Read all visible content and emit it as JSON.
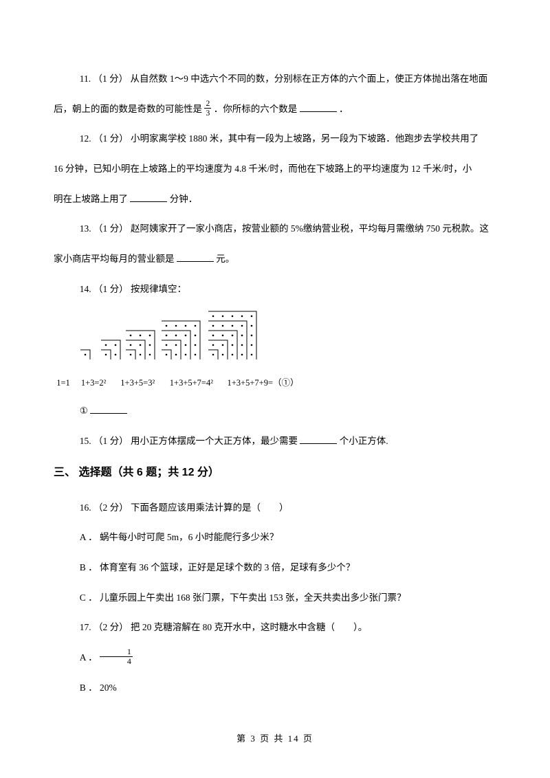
{
  "q11": {
    "num": "11.",
    "pts": "（1 分）",
    "t1": "从自然数 1～9 中选六个不同的数，分别标在正方体的六个面上，使正方体抛出落在地面",
    "t2": "后，朝上的面的数是奇数的可能性是",
    "frac_n": "2",
    "frac_d": "3",
    "t3": "．你所标的六个数是",
    "t4": "．"
  },
  "q12": {
    "num": "12.",
    "pts": "（1 分）",
    "t1": "小明家离学校 1880 米，其中有一段为上坡路，另一段为下坡路．他跑步去学校共用了",
    "t2": "16 分钟，已知小明在上坡路上的平均速度为 4.8 千米/时，而他在下坡路上的平均速度为 12 千米/时，小",
    "t3": "明在上坡路上用了",
    "t4": "分钟．"
  },
  "q13": {
    "num": "13.",
    "pts": "（1 分）",
    "t1": "赵阿姨家开了一家小商店，按营业额的 5%缴纳营业税，平均每月需缴纳 750 元税款。这",
    "t2": "家小商店平均每月的营业额是",
    "t3": "元。"
  },
  "q14": {
    "num": "14.",
    "pts": "（1 分）",
    "t1": "按规律填空：",
    "caps": [
      "1=1",
      "1+3=2²",
      "1+3+5=3²",
      "1+3+5+7=4²",
      "1+3+5+7+9=（①）"
    ],
    "sub": "①"
  },
  "q15": {
    "num": "15.",
    "pts": "（1 分）",
    "t1": "用小正方体摆成一个大正方体，最少需要",
    "t2": "个小正方体."
  },
  "section3": "三、 选择题（共 6 题；共 12 分）",
  "q16": {
    "num": "16.",
    "pts": "（2 分）",
    "stem": "下面各题应该用乘法计算的是（　　）",
    "A": "A ． 蜗牛每小时可爬 5m，6 小时能爬行多少米？",
    "B": "B ． 体育室有 36 个篮球，正好是足球个数的 3 倍，足球有多少个？",
    "C": "C ． 儿童乐园上午卖出 168 张门票，下午卖出 153 张，全天共卖出多少张门票？"
  },
  "q17": {
    "num": "17.",
    "pts": "（2 分）",
    "stem": "把 20 克糖溶解在 80 克开水中，这时糖水中含糖（　　）。",
    "A": "A ．",
    "A_frac_n": "1",
    "A_frac_d": "4",
    "B": "B ． 20%"
  },
  "footer": "第 3 页 共 14 页",
  "figure": {
    "groups": 5,
    "dot_color": "#000000",
    "line_color": "#000000",
    "dot_r": 1.3
  }
}
